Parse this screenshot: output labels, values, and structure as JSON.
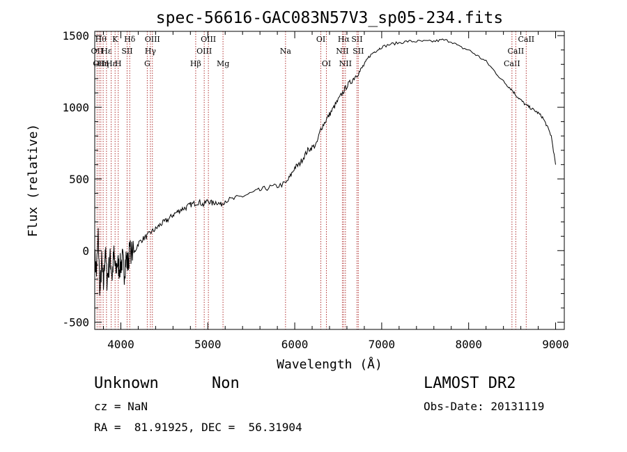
{
  "chart_data": {
    "type": "line",
    "title": "spec-56616-GAC083N57V3_sp05-234.fits",
    "xlabel": "Wavelength (Å)",
    "ylabel": "Flux (relative)",
    "xlim": [
      3700,
      9100
    ],
    "ylim": [
      -550,
      1530
    ],
    "xticks": [
      4000,
      5000,
      6000,
      7000,
      8000,
      9000
    ],
    "yticks": [
      -500,
      0,
      500,
      1000,
      1500
    ],
    "series": [
      {
        "x": [
          3700,
          3720,
          3740,
          3760,
          3780,
          3800,
          3820,
          3840,
          3860,
          3880,
          3900,
          3920,
          3940,
          3960,
          3980,
          4000,
          4020,
          4040,
          4060,
          4080,
          4100,
          4150,
          4200,
          4250,
          4300,
          4350,
          4400,
          4450,
          4500,
          4550,
          4600,
          4650,
          4700,
          4750,
          4800,
          4850,
          4900,
          4950,
          5000,
          5050,
          5100,
          5150,
          5200,
          5300,
          5400,
          5500,
          5600,
          5700,
          5800,
          5900,
          5950,
          6000,
          6050,
          6100,
          6150,
          6200,
          6250,
          6300,
          6350,
          6400,
          6450,
          6500,
          6550,
          6600,
          6650,
          6700,
          6750,
          6800,
          6850,
          6900,
          6950,
          7000,
          7100,
          7200,
          7300,
          7400,
          7500,
          7600,
          7700,
          7800,
          7900,
          8000,
          8100,
          8200,
          8300,
          8400,
          8450,
          8500,
          8550,
          8600,
          8650,
          8700,
          8750,
          8800,
          8850,
          8900,
          8950,
          9000
        ],
        "values": [
          -50,
          -150,
          100,
          -300,
          -80,
          -250,
          20,
          -200,
          -120,
          -50,
          -180,
          -30,
          -150,
          -80,
          -120,
          -100,
          -60,
          -150,
          -50,
          -100,
          0,
          -20,
          50,
          80,
          100,
          130,
          150,
          180,
          200,
          220,
          250,
          270,
          290,
          300,
          320,
          330,
          340,
          320,
          350,
          330,
          340,
          320,
          350,
          360,
          380,
          400,
          420,
          440,
          450,
          470,
          520,
          580,
          600,
          650,
          700,
          720,
          740,
          850,
          900,
          950,
          1000,
          1050,
          1100,
          1150,
          1180,
          1220,
          1250,
          1300,
          1350,
          1380,
          1400,
          1420,
          1440,
          1450,
          1460,
          1460,
          1460,
          1460,
          1470,
          1460,
          1420,
          1400,
          1360,
          1320,
          1250,
          1180,
          1150,
          1120,
          1080,
          1050,
          1020,
          1000,
          980,
          960,
          930,
          870,
          800,
          600
        ]
      }
    ],
    "lines": [
      {
        "wave": 3727,
        "label": "OII",
        "row": 1
      },
      {
        "wave": 3750,
        "label": "OII",
        "row": 2
      },
      {
        "wave": 3770,
        "label": "Hθ",
        "row": 0
      },
      {
        "wave": 3797,
        "label": "Hη",
        "row": 2
      },
      {
        "wave": 3835,
        "label": "Hε",
        "row": 1
      },
      {
        "wave": 3889,
        "label": "Hε",
        "row": 2
      },
      {
        "wave": 3934,
        "label": "K",
        "row": 0
      },
      {
        "wave": 3970,
        "label": "H",
        "row": 2
      },
      {
        "wave": 4072,
        "label": "SII",
        "row": 1
      },
      {
        "wave": 4102,
        "label": "Hδ",
        "row": 0
      },
      {
        "wave": 4304,
        "label": "G",
        "row": 2
      },
      {
        "wave": 4340,
        "label": "Hγ",
        "row": 1
      },
      {
        "wave": 4363,
        "label": "OIII",
        "row": 0
      },
      {
        "wave": 4861,
        "label": "Hβ",
        "row": 2
      },
      {
        "wave": 4959,
        "label": "OIII",
        "row": 1
      },
      {
        "wave": 5007,
        "label": "OIII",
        "row": 0
      },
      {
        "wave": 5175,
        "label": "Mg",
        "row": 2
      },
      {
        "wave": 5894,
        "label": "Na",
        "row": 1
      },
      {
        "wave": 6300,
        "label": "OI",
        "row": 0
      },
      {
        "wave": 6364,
        "label": "OI",
        "row": 2
      },
      {
        "wave": 6548,
        "label": "NII",
        "row": 1
      },
      {
        "wave": 6563,
        "label": "Hα",
        "row": 0
      },
      {
        "wave": 6583,
        "label": "NII",
        "row": 2
      },
      {
        "wave": 6716,
        "label": "SII",
        "row": 0
      },
      {
        "wave": 6731,
        "label": "SII",
        "row": 1
      },
      {
        "wave": 8498,
        "label": "CaII",
        "row": 2
      },
      {
        "wave": 8542,
        "label": "CaII",
        "row": 1
      },
      {
        "wave": 8662,
        "label": "CaII",
        "row": 0
      }
    ]
  },
  "info": {
    "class": "Unknown",
    "subclass": "Non",
    "survey": "LAMOST DR2",
    "redshift": "cz = NaN",
    "obsdate": "Obs-Date: 20131119",
    "coords": "RA =  81.91925, DEC =  56.31904"
  },
  "colors": {
    "spectrum": "#000000",
    "line_markers": "#b03030",
    "axes": "#000000",
    "background": "#ffffff"
  }
}
